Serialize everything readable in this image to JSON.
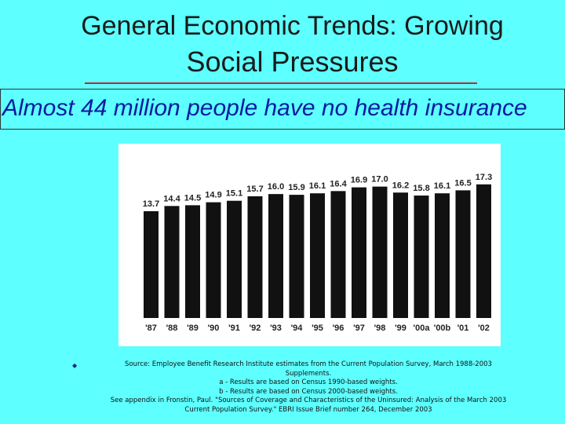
{
  "slide": {
    "title_line1": "General Economic Trends: Growing",
    "title_line2": "Social Pressures",
    "subtitle": "Almost 44 million people have no health insurance"
  },
  "colors": {
    "background": "#5DFFFF",
    "rule": "#c1272d",
    "subtitle": "#0a1aa0",
    "bar": "#111111"
  },
  "chart_data": {
    "type": "bar",
    "categories": [
      "'87",
      "'88",
      "'89",
      "'90",
      "'91",
      "'92",
      "'93",
      "'94",
      "'95",
      "'96",
      "'97",
      "'98",
      "'99",
      "'00a",
      "'00b",
      "'01",
      "'02"
    ],
    "values": [
      13.7,
      14.4,
      14.5,
      14.9,
      15.1,
      15.7,
      16.0,
      15.9,
      16.1,
      16.4,
      16.9,
      17.0,
      16.2,
      15.8,
      16.1,
      16.5,
      17.3
    ],
    "value_labels": [
      "13.7",
      "14.4",
      "14.5",
      "14.9",
      "15.1",
      "15.7",
      "16.0",
      "15.9",
      "16.1",
      "16.4",
      "16.9",
      "17.0",
      "16.2",
      "15.8",
      "16.1",
      "16.5",
      "17.3"
    ],
    "title": "",
    "xlabel": "",
    "ylabel": "",
    "grid": false
  },
  "source": {
    "bullet": "◆",
    "lines": [
      "Source: Employee Benefit Research Institute estimates from the Current Population Survey, March 1988-2003",
      "Supplements.",
      "a - Results are based on Census 1990-based weights.",
      "b - Results are based on Census 2000-based weights.",
      "See appendix in Fronstin, Paul. \"Sources of Coverage and Characteristics of the Uninsured: Analysis of the March 2003",
      "Current Population Survey.\" EBRI Issue Brief number 264, December 2003"
    ]
  }
}
